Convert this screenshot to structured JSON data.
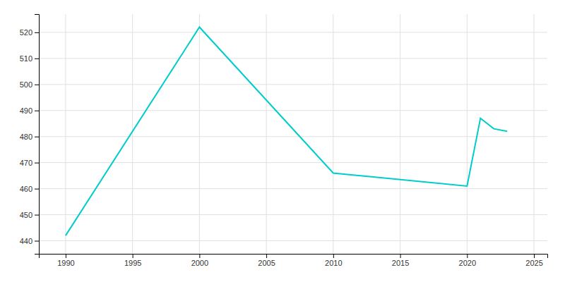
{
  "chart_data": {
    "type": "line",
    "x": [
      1990,
      2000,
      2010,
      2020,
      2021,
      2022,
      2023
    ],
    "values": [
      442,
      522,
      466,
      461,
      487,
      483,
      482
    ],
    "color": "#00CCCC",
    "xlim": [
      1988,
      2026
    ],
    "ylim": [
      435,
      527
    ],
    "xticks": [
      1990,
      1995,
      2000,
      2005,
      2010,
      2015,
      2020,
      2025
    ],
    "yticks": [
      440,
      450,
      460,
      470,
      480,
      490,
      500,
      510,
      520
    ],
    "grid": true
  }
}
